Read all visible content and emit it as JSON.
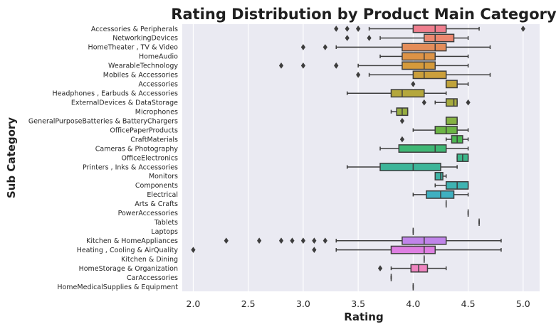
{
  "chart_data": {
    "type": "box",
    "orientation": "horizontal",
    "title": "Rating Distribution by Product Main Category",
    "xlabel": "Rating",
    "ylabel": "Sub Category",
    "xlim": [
      1.9,
      5.15
    ],
    "xticks": [
      2.0,
      2.5,
      3.0,
      3.5,
      4.0,
      4.5,
      5.0
    ],
    "xtick_labels": [
      "2.0",
      "2.5",
      "3.0",
      "3.5",
      "4.0",
      "4.5",
      "5.0"
    ],
    "grid": true,
    "background": "#eaeaf2",
    "categories": [
      {
        "name": "Accessories & Peripherals",
        "color": "#f07f8f",
        "whislo": 3.6,
        "q1": 4.0,
        "med": 4.2,
        "q3": 4.3,
        "whishi": 4.6,
        "fliers": [
          3.3,
          3.4,
          3.5,
          3.5,
          5.0
        ]
      },
      {
        "name": "NetworkingDevices",
        "color": "#ec8870",
        "whislo": 3.7,
        "q1": 4.1,
        "med": 4.2,
        "q3": 4.37,
        "whishi": 4.5,
        "fliers": [
          3.4,
          3.6
        ]
      },
      {
        "name": "HomeTheater , TV & Video",
        "color": "#e48d5a",
        "whislo": 3.3,
        "q1": 3.9,
        "med": 4.2,
        "q3": 4.3,
        "whishi": 4.7,
        "fliers": [
          3.0,
          3.2
        ]
      },
      {
        "name": "HomeAudio",
        "color": "#dd9346",
        "whislo": 3.7,
        "q1": 3.9,
        "med": 4.1,
        "q3": 4.2,
        "whishi": 4.5,
        "fliers": []
      },
      {
        "name": "WearableTechnology",
        "color": "#d59a3b",
        "whislo": 3.5,
        "q1": 3.9,
        "med": 4.1,
        "q3": 4.2,
        "whishi": 4.5,
        "fliers": [
          2.8,
          3.0,
          3.3,
          3.3
        ]
      },
      {
        "name": "Mobiles & Accessories",
        "color": "#cb9f3b",
        "whislo": 3.6,
        "q1": 4.0,
        "med": 4.1,
        "q3": 4.3,
        "whishi": 4.7,
        "fliers": [
          3.5
        ]
      },
      {
        "name": "Accessories",
        "color": "#c0a33b",
        "whislo": 4.3,
        "q1": 4.3,
        "med": 4.3,
        "q3": 4.4,
        "whishi": 4.5,
        "fliers": [
          4.0
        ]
      },
      {
        "name": "Headphones , Earbuds & Accessories",
        "color": "#b4a73c",
        "whislo": 3.4,
        "q1": 3.8,
        "med": 3.9,
        "q3": 4.1,
        "whishi": 4.3,
        "fliers": []
      },
      {
        "name": "ExternalDevices & DataStorage",
        "color": "#a6ab3e",
        "whislo": 4.2,
        "q1": 4.3,
        "med": 4.37,
        "q3": 4.4,
        "whishi": 4.4,
        "fliers": [
          4.1,
          4.5
        ]
      },
      {
        "name": "Microphones",
        "color": "#97ae41",
        "whislo": 3.8,
        "q1": 3.85,
        "med": 3.9,
        "q3": 3.95,
        "whishi": 3.95,
        "fliers": []
      },
      {
        "name": "GeneralPurposeBatteries & BatteryChargers",
        "color": "#85b243",
        "whislo": 4.3,
        "q1": 4.3,
        "med": 4.3,
        "q3": 4.4,
        "whishi": 4.4,
        "fliers": [
          3.9
        ]
      },
      {
        "name": "OfficePaperProducts",
        "color": "#6cb545",
        "whislo": 4.0,
        "q1": 4.2,
        "med": 4.3,
        "q3": 4.4,
        "whishi": 4.5,
        "fliers": []
      },
      {
        "name": "CraftMaterials",
        "color": "#4cb752",
        "whislo": 4.3,
        "q1": 4.35,
        "med": 4.4,
        "q3": 4.45,
        "whishi": 4.5,
        "fliers": [
          3.9
        ]
      },
      {
        "name": "Cameras & Photography",
        "color": "#3fb775",
        "whislo": 3.7,
        "q1": 3.87,
        "med": 4.2,
        "q3": 4.3,
        "whishi": 4.5,
        "fliers": []
      },
      {
        "name": "OfficeElectronics",
        "color": "#3db68a",
        "whislo": 4.4,
        "q1": 4.4,
        "med": 4.45,
        "q3": 4.5,
        "whishi": 4.5,
        "fliers": []
      },
      {
        "name": "Printers , Inks & Accessories",
        "color": "#3cb599",
        "whislo": 3.4,
        "q1": 3.7,
        "med": 4.0,
        "q3": 4.25,
        "whishi": 4.4,
        "fliers": []
      },
      {
        "name": "Monitors",
        "color": "#3db4a6",
        "whislo": 4.2,
        "q1": 4.2,
        "med": 4.25,
        "q3": 4.27,
        "whishi": 4.3,
        "fliers": []
      },
      {
        "name": "Components",
        "color": "#3eb3b2",
        "whislo": 4.2,
        "q1": 4.3,
        "med": 4.4,
        "q3": 4.5,
        "whishi": 4.5,
        "fliers": []
      },
      {
        "name": "Electrical",
        "color": "#3fb0c1",
        "whislo": 4.0,
        "q1": 4.12,
        "med": 4.25,
        "q3": 4.37,
        "whishi": 4.5,
        "fliers": []
      },
      {
        "name": "Arts & Crafts",
        "color": "#40acd2",
        "whislo": 4.3,
        "q1": 4.3,
        "med": 4.3,
        "q3": 4.3,
        "whishi": 4.3,
        "fliers": []
      },
      {
        "name": "PowerAccessories",
        "color": "#4aa5e0",
        "whislo": 4.5,
        "q1": 4.5,
        "med": 4.5,
        "q3": 4.5,
        "whishi": 4.5,
        "fliers": []
      },
      {
        "name": "Tablets",
        "color": "#6a9ce6",
        "whislo": 4.6,
        "q1": 4.6,
        "med": 4.6,
        "q3": 4.6,
        "whishi": 4.6,
        "fliers": []
      },
      {
        "name": "Laptops",
        "color": "#9593e8",
        "whislo": 4.0,
        "q1": 4.0,
        "med": 4.0,
        "q3": 4.0,
        "whishi": 4.0,
        "fliers": []
      },
      {
        "name": "Kitchen & HomeAppliances",
        "color": "#c084ea",
        "whislo": 3.3,
        "q1": 3.9,
        "med": 4.1,
        "q3": 4.3,
        "whishi": 4.8,
        "fliers": [
          2.3,
          2.6,
          2.8,
          2.9,
          3.0,
          3.1,
          3.2
        ]
      },
      {
        "name": "Heating , Cooling & AirQuality",
        "color": "#de7fe2",
        "whislo": 3.3,
        "q1": 3.8,
        "med": 4.1,
        "q3": 4.2,
        "whishi": 4.8,
        "fliers": [
          2.0,
          3.1
        ]
      },
      {
        "name": "Kitchen & Dining",
        "color": "#ec82d2",
        "whislo": 4.1,
        "q1": 4.1,
        "med": 4.1,
        "q3": 4.1,
        "whishi": 4.1,
        "fliers": []
      },
      {
        "name": "HomeStorage & Organization",
        "color": "#ef85c0",
        "whislo": 3.8,
        "q1": 3.98,
        "med": 4.05,
        "q3": 4.13,
        "whishi": 4.3,
        "fliers": [
          3.7
        ]
      },
      {
        "name": "CarAccessories",
        "color": "#f089ae",
        "whislo": 3.8,
        "q1": 3.8,
        "med": 3.8,
        "q3": 3.8,
        "whishi": 3.8,
        "fliers": []
      },
      {
        "name": "HomeMedicalSupplies & Equipment",
        "color": "#f08c9c",
        "whislo": 4.0,
        "q1": 4.0,
        "med": 4.0,
        "q3": 4.0,
        "whishi": 4.0,
        "fliers": []
      }
    ]
  }
}
